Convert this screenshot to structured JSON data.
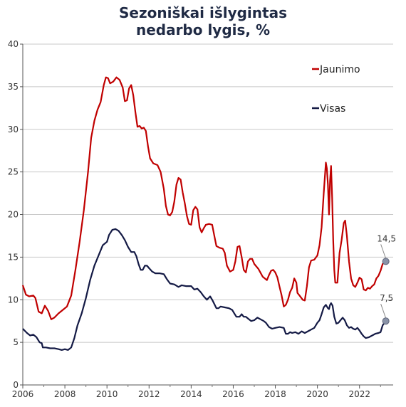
{
  "chart_data": {
    "type": "line",
    "title_line1": "Sezoniškai išlygintas",
    "title_line2": "nedarbo lygis, %",
    "xlabel": "",
    "ylabel": "",
    "xlim": [
      2006,
      2023.6
    ],
    "ylim": [
      0,
      40
    ],
    "x_ticks": [
      2006,
      2008,
      2010,
      2012,
      2014,
      2016,
      2018,
      2020,
      2022
    ],
    "y_ticks": [
      0,
      5,
      10,
      15,
      20,
      25,
      30,
      35,
      40
    ],
    "grid": "horizontal",
    "legend_position": "top-right",
    "series": [
      {
        "name": "Jaunimo",
        "color": "#c00000",
        "end_value_label": "14,5",
        "end_point": [
          2023.25,
          14.5
        ],
        "points": [
          [
            2006.0,
            11.7
          ],
          [
            2006.15,
            10.6
          ],
          [
            2006.3,
            10.4
          ],
          [
            2006.5,
            10.5
          ],
          [
            2006.6,
            10.2
          ],
          [
            2006.75,
            8.6
          ],
          [
            2006.9,
            8.4
          ],
          [
            2007.05,
            9.3
          ],
          [
            2007.2,
            8.7
          ],
          [
            2007.35,
            7.7
          ],
          [
            2007.5,
            7.9
          ],
          [
            2007.7,
            8.4
          ],
          [
            2007.9,
            8.8
          ],
          [
            2008.1,
            9.2
          ],
          [
            2008.3,
            10.5
          ],
          [
            2008.5,
            13.5
          ],
          [
            2008.7,
            16.8
          ],
          [
            2008.9,
            20.5
          ],
          [
            2009.1,
            25.0
          ],
          [
            2009.25,
            29.0
          ],
          [
            2009.4,
            31.0
          ],
          [
            2009.55,
            32.3
          ],
          [
            2009.7,
            33.2
          ],
          [
            2009.85,
            35.2
          ],
          [
            2009.95,
            36.1
          ],
          [
            2010.05,
            36.0
          ],
          [
            2010.15,
            35.4
          ],
          [
            2010.3,
            35.6
          ],
          [
            2010.45,
            36.1
          ],
          [
            2010.6,
            35.8
          ],
          [
            2010.75,
            34.9
          ],
          [
            2010.85,
            33.3
          ],
          [
            2010.95,
            33.4
          ],
          [
            2011.05,
            34.8
          ],
          [
            2011.15,
            35.2
          ],
          [
            2011.25,
            34.0
          ],
          [
            2011.35,
            32.0
          ],
          [
            2011.45,
            30.3
          ],
          [
            2011.55,
            30.4
          ],
          [
            2011.65,
            30.1
          ],
          [
            2011.75,
            30.2
          ],
          [
            2011.85,
            29.8
          ],
          [
            2011.95,
            28.0
          ],
          [
            2012.05,
            26.6
          ],
          [
            2012.2,
            26.0
          ],
          [
            2012.4,
            25.8
          ],
          [
            2012.55,
            25.0
          ],
          [
            2012.7,
            23.0
          ],
          [
            2012.8,
            21.0
          ],
          [
            2012.9,
            20.0
          ],
          [
            2013.0,
            19.9
          ],
          [
            2013.1,
            20.3
          ],
          [
            2013.2,
            21.5
          ],
          [
            2013.3,
            23.5
          ],
          [
            2013.4,
            24.3
          ],
          [
            2013.5,
            24.1
          ],
          [
            2013.6,
            22.6
          ],
          [
            2013.7,
            21.3
          ],
          [
            2013.8,
            19.8
          ],
          [
            2013.9,
            18.9
          ],
          [
            2014.0,
            18.8
          ],
          [
            2014.1,
            20.5
          ],
          [
            2014.2,
            20.9
          ],
          [
            2014.3,
            20.6
          ],
          [
            2014.4,
            18.5
          ],
          [
            2014.5,
            17.9
          ],
          [
            2014.6,
            18.4
          ],
          [
            2014.7,
            18.8
          ],
          [
            2014.85,
            18.9
          ],
          [
            2015.0,
            18.8
          ],
          [
            2015.1,
            17.5
          ],
          [
            2015.2,
            16.3
          ],
          [
            2015.35,
            16.1
          ],
          [
            2015.5,
            16.0
          ],
          [
            2015.6,
            15.5
          ],
          [
            2015.7,
            14.0
          ],
          [
            2015.85,
            13.3
          ],
          [
            2016.0,
            13.5
          ],
          [
            2016.1,
            14.5
          ],
          [
            2016.2,
            16.2
          ],
          [
            2016.3,
            16.3
          ],
          [
            2016.4,
            15.0
          ],
          [
            2016.5,
            13.5
          ],
          [
            2016.6,
            13.2
          ],
          [
            2016.7,
            14.5
          ],
          [
            2016.8,
            14.8
          ],
          [
            2016.9,
            14.8
          ],
          [
            2017.0,
            14.2
          ],
          [
            2017.2,
            13.6
          ],
          [
            2017.4,
            12.7
          ],
          [
            2017.6,
            12.3
          ],
          [
            2017.7,
            12.9
          ],
          [
            2017.8,
            13.4
          ],
          [
            2017.9,
            13.5
          ],
          [
            2018.0,
            13.2
          ],
          [
            2018.1,
            12.6
          ],
          [
            2018.2,
            11.5
          ],
          [
            2018.3,
            10.5
          ],
          [
            2018.4,
            9.2
          ],
          [
            2018.5,
            9.4
          ],
          [
            2018.6,
            10.0
          ],
          [
            2018.7,
            10.9
          ],
          [
            2018.8,
            11.4
          ],
          [
            2018.9,
            12.5
          ],
          [
            2019.0,
            12.0
          ],
          [
            2019.05,
            10.8
          ],
          [
            2019.15,
            10.5
          ],
          [
            2019.3,
            10.0
          ],
          [
            2019.4,
            9.9
          ],
          [
            2019.5,
            11.6
          ],
          [
            2019.6,
            13.8
          ],
          [
            2019.7,
            14.6
          ],
          [
            2019.85,
            14.7
          ],
          [
            2020.0,
            15.2
          ],
          [
            2020.1,
            16.4
          ],
          [
            2020.2,
            18.5
          ],
          [
            2020.3,
            22.5
          ],
          [
            2020.4,
            26.1
          ],
          [
            2020.45,
            25.4
          ],
          [
            2020.5,
            23.5
          ],
          [
            2020.55,
            20.0
          ],
          [
            2020.6,
            24.0
          ],
          [
            2020.65,
            25.7
          ],
          [
            2020.7,
            22.0
          ],
          [
            2020.75,
            17.0
          ],
          [
            2020.8,
            13.5
          ],
          [
            2020.85,
            12.0
          ],
          [
            2020.95,
            12.0
          ],
          [
            2021.05,
            15.5
          ],
          [
            2021.15,
            17.0
          ],
          [
            2021.25,
            19.0
          ],
          [
            2021.32,
            19.3
          ],
          [
            2021.4,
            17.5
          ],
          [
            2021.5,
            14.5
          ],
          [
            2021.6,
            12.5
          ],
          [
            2021.7,
            11.7
          ],
          [
            2021.8,
            11.5
          ],
          [
            2021.9,
            12.0
          ],
          [
            2022.0,
            12.6
          ],
          [
            2022.1,
            12.4
          ],
          [
            2022.2,
            11.2
          ],
          [
            2022.3,
            11.1
          ],
          [
            2022.4,
            11.4
          ],
          [
            2022.5,
            11.3
          ],
          [
            2022.6,
            11.6
          ],
          [
            2022.7,
            11.8
          ],
          [
            2022.8,
            12.5
          ],
          [
            2022.9,
            12.8
          ],
          [
            2023.0,
            13.4
          ],
          [
            2023.1,
            14.2
          ],
          [
            2023.25,
            14.5
          ]
        ]
      },
      {
        "name": "Visas",
        "color": "#141a45",
        "end_value_label": "7,5",
        "end_point": [
          2023.25,
          7.5
        ],
        "points": [
          [
            2006.0,
            6.6
          ],
          [
            2006.2,
            6.1
          ],
          [
            2006.35,
            5.8
          ],
          [
            2006.5,
            5.9
          ],
          [
            2006.65,
            5.6
          ],
          [
            2006.8,
            5.0
          ],
          [
            2006.9,
            4.9
          ],
          [
            2006.95,
            4.4
          ],
          [
            2007.1,
            4.4
          ],
          [
            2007.3,
            4.3
          ],
          [
            2007.5,
            4.3
          ],
          [
            2007.7,
            4.2
          ],
          [
            2007.85,
            4.1
          ],
          [
            2008.0,
            4.2
          ],
          [
            2008.15,
            4.1
          ],
          [
            2008.3,
            4.4
          ],
          [
            2008.45,
            5.5
          ],
          [
            2008.6,
            7.0
          ],
          [
            2008.8,
            8.4
          ],
          [
            2009.0,
            10.2
          ],
          [
            2009.2,
            12.3
          ],
          [
            2009.4,
            14.0
          ],
          [
            2009.6,
            15.2
          ],
          [
            2009.8,
            16.4
          ],
          [
            2010.0,
            16.8
          ],
          [
            2010.1,
            17.6
          ],
          [
            2010.25,
            18.2
          ],
          [
            2010.4,
            18.3
          ],
          [
            2010.55,
            18.1
          ],
          [
            2010.7,
            17.6
          ],
          [
            2010.85,
            17.0
          ],
          [
            2011.0,
            16.2
          ],
          [
            2011.15,
            15.6
          ],
          [
            2011.3,
            15.6
          ],
          [
            2011.4,
            15.1
          ],
          [
            2011.5,
            14.2
          ],
          [
            2011.6,
            13.5
          ],
          [
            2011.7,
            13.5
          ],
          [
            2011.8,
            14.0
          ],
          [
            2011.9,
            14.0
          ],
          [
            2012.0,
            13.7
          ],
          [
            2012.15,
            13.3
          ],
          [
            2012.3,
            13.1
          ],
          [
            2012.5,
            13.1
          ],
          [
            2012.7,
            13.0
          ],
          [
            2012.85,
            12.4
          ],
          [
            2013.0,
            11.9
          ],
          [
            2013.2,
            11.8
          ],
          [
            2013.4,
            11.5
          ],
          [
            2013.55,
            11.7
          ],
          [
            2013.75,
            11.6
          ],
          [
            2014.0,
            11.6
          ],
          [
            2014.15,
            11.2
          ],
          [
            2014.3,
            11.3
          ],
          [
            2014.45,
            10.9
          ],
          [
            2014.6,
            10.4
          ],
          [
            2014.75,
            10.0
          ],
          [
            2014.9,
            10.4
          ],
          [
            2015.0,
            10.0
          ],
          [
            2015.1,
            9.5
          ],
          [
            2015.2,
            9.0
          ],
          [
            2015.3,
            9.0
          ],
          [
            2015.4,
            9.2
          ],
          [
            2015.6,
            9.1
          ],
          [
            2015.8,
            9.0
          ],
          [
            2015.95,
            8.8
          ],
          [
            2016.05,
            8.4
          ],
          [
            2016.15,
            8.0
          ],
          [
            2016.3,
            8.0
          ],
          [
            2016.4,
            8.3
          ],
          [
            2016.5,
            8.0
          ],
          [
            2016.6,
            8.0
          ],
          [
            2016.7,
            7.8
          ],
          [
            2016.85,
            7.5
          ],
          [
            2017.0,
            7.6
          ],
          [
            2017.15,
            7.9
          ],
          [
            2017.3,
            7.7
          ],
          [
            2017.45,
            7.5
          ],
          [
            2017.55,
            7.3
          ],
          [
            2017.7,
            6.8
          ],
          [
            2017.85,
            6.6
          ],
          [
            2018.0,
            6.7
          ],
          [
            2018.2,
            6.8
          ],
          [
            2018.4,
            6.7
          ],
          [
            2018.5,
            6.0
          ],
          [
            2018.6,
            6.0
          ],
          [
            2018.7,
            6.2
          ],
          [
            2018.8,
            6.1
          ],
          [
            2018.95,
            6.2
          ],
          [
            2019.1,
            6.0
          ],
          [
            2019.25,
            6.3
          ],
          [
            2019.4,
            6.1
          ],
          [
            2019.55,
            6.3
          ],
          [
            2019.7,
            6.5
          ],
          [
            2019.85,
            6.7
          ],
          [
            2020.0,
            7.3
          ],
          [
            2020.1,
            7.6
          ],
          [
            2020.2,
            8.3
          ],
          [
            2020.3,
            9.1
          ],
          [
            2020.4,
            9.4
          ],
          [
            2020.5,
            9.0
          ],
          [
            2020.55,
            8.9
          ],
          [
            2020.6,
            9.4
          ],
          [
            2020.65,
            9.6
          ],
          [
            2020.72,
            9.3
          ],
          [
            2020.8,
            8.0
          ],
          [
            2020.9,
            7.2
          ],
          [
            2021.0,
            7.3
          ],
          [
            2021.1,
            7.6
          ],
          [
            2021.2,
            7.9
          ],
          [
            2021.3,
            7.6
          ],
          [
            2021.4,
            7.0
          ],
          [
            2021.5,
            6.7
          ],
          [
            2021.6,
            6.8
          ],
          [
            2021.7,
            6.6
          ],
          [
            2021.8,
            6.5
          ],
          [
            2021.9,
            6.7
          ],
          [
            2022.0,
            6.4
          ],
          [
            2022.1,
            6.0
          ],
          [
            2022.2,
            5.7
          ],
          [
            2022.3,
            5.5
          ],
          [
            2022.45,
            5.6
          ],
          [
            2022.6,
            5.8
          ],
          [
            2022.75,
            6.0
          ],
          [
            2022.9,
            6.1
          ],
          [
            2023.0,
            6.2
          ],
          [
            2023.1,
            7.0
          ],
          [
            2023.25,
            7.5
          ]
        ]
      }
    ]
  }
}
